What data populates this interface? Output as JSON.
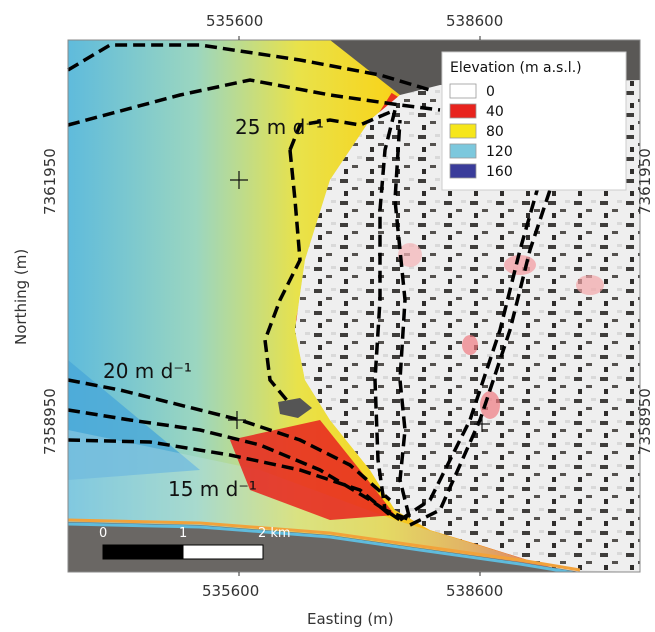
{
  "axes": {
    "x_title": "Easting (m)",
    "y_title": "Northing (m)",
    "x_ticks": [
      "535600",
      "538600"
    ],
    "y_ticks": [
      "7361950",
      "7358950"
    ]
  },
  "legend": {
    "title": "Elevation (m a.s.l.)",
    "items": [
      {
        "label": "0",
        "color": "#ffffff"
      },
      {
        "label": "40",
        "color": "#e8231e"
      },
      {
        "label": "80",
        "color": "#f6e61a"
      },
      {
        "label": "120",
        "color": "#7cc8dd"
      },
      {
        "label": "160",
        "color": "#3a3c9a"
      }
    ]
  },
  "velocity_labels": [
    "25 m d⁻¹",
    "20 m d⁻¹",
    "15 m d⁻¹"
  ],
  "scale_bar": {
    "labels": [
      "0",
      "1",
      "2 km"
    ]
  },
  "colors": {
    "ice_blue": "#5bb8dc",
    "ice_cyan": "#8fd0cf",
    "ice_yellow": "#f3df35",
    "ice_orange": "#f4a020",
    "ice_red": "#e8231e",
    "land_gray": "#6b6966",
    "contour": "#000000"
  }
}
